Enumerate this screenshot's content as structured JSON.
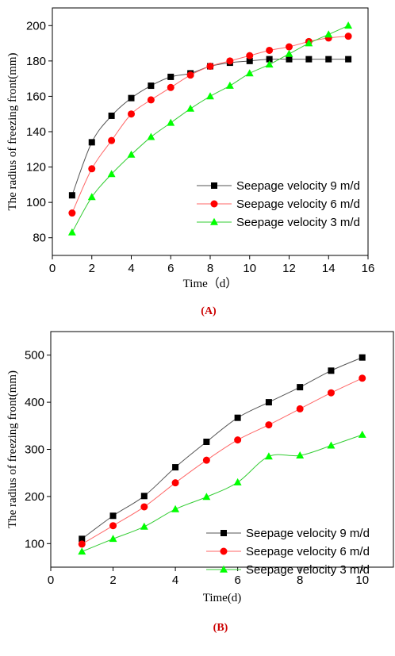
{
  "chart_data": [
    {
      "type": "line",
      "panel_label": "(A)",
      "xlabel": "Time（d）",
      "ylabel": "The radius of freezing front(mm)",
      "xlim": [
        0,
        16
      ],
      "ylim": [
        70,
        210
      ],
      "x_ticks": [
        0,
        2,
        4,
        6,
        8,
        10,
        12,
        14,
        16
      ],
      "y_ticks": [
        80,
        100,
        120,
        140,
        160,
        180,
        200
      ],
      "legend_position": "bottom-right",
      "series": [
        {
          "name": "Seepage velocity 9 m/d",
          "marker": "square",
          "color": "#000000",
          "line_color": "#555555",
          "x": [
            1,
            2,
            3,
            4,
            5,
            6,
            7,
            8,
            9,
            10,
            11,
            12,
            13,
            14,
            15
          ],
          "y": [
            104,
            134,
            149,
            159,
            166,
            171,
            173,
            177,
            179,
            180,
            181,
            181,
            181,
            181,
            181
          ]
        },
        {
          "name": "Seepage velocity 6 m/d",
          "marker": "circle",
          "color": "#ff0000",
          "line_color": "#ff6666",
          "x": [
            1,
            2,
            3,
            4,
            5,
            6,
            7,
            8,
            9,
            10,
            11,
            12,
            13,
            14,
            15
          ],
          "y": [
            94,
            119,
            135,
            150,
            158,
            165,
            172,
            177,
            180,
            183,
            186,
            188,
            191,
            193,
            194
          ]
        },
        {
          "name": "Seepage velocity 3 m/d",
          "marker": "triangle",
          "color": "#00ff00",
          "line_color": "#33cc33",
          "x": [
            1,
            2,
            3,
            4,
            5,
            6,
            7,
            8,
            9,
            10,
            11,
            12,
            13,
            14,
            15
          ],
          "y": [
            83,
            103,
            116,
            127,
            137,
            145,
            153,
            160,
            166,
            173,
            178,
            184,
            190,
            195,
            200
          ]
        }
      ]
    },
    {
      "type": "line",
      "panel_label": "(B)",
      "xlabel": "Time(d)",
      "ylabel": "The radius of freezing front(mm)",
      "xlim": [
        0,
        11
      ],
      "ylim": [
        50,
        550
      ],
      "x_ticks": [
        0,
        2,
        4,
        6,
        8,
        10
      ],
      "y_ticks": [
        100,
        200,
        300,
        400,
        500
      ],
      "legend_position": "bottom-right",
      "series": [
        {
          "name": "Seepage velocity 9 m/d",
          "marker": "square",
          "color": "#000000",
          "line_color": "#555555",
          "x": [
            1,
            2,
            3,
            4,
            5,
            6,
            7,
            8,
            9,
            10
          ],
          "y": [
            110,
            159,
            201,
            262,
            316,
            367,
            400,
            432,
            467,
            495
          ]
        },
        {
          "name": "Seepage velocity 6 m/d",
          "marker": "circle",
          "color": "#ff0000",
          "line_color": "#ff6666",
          "x": [
            1,
            2,
            3,
            4,
            5,
            6,
            7,
            8,
            9,
            10
          ],
          "y": [
            99,
            138,
            178,
            229,
            277,
            320,
            352,
            386,
            420,
            451
          ]
        },
        {
          "name": "Seepage velocity 3 m/d",
          "marker": "triangle",
          "color": "#00ff00",
          "line_color": "#33cc33",
          "x": [
            1,
            2,
            3,
            4,
            5,
            6,
            7,
            8,
            9,
            10
          ],
          "y": [
            83,
            110,
            136,
            173,
            199,
            230,
            285,
            287,
            308,
            331
          ]
        }
      ]
    }
  ]
}
